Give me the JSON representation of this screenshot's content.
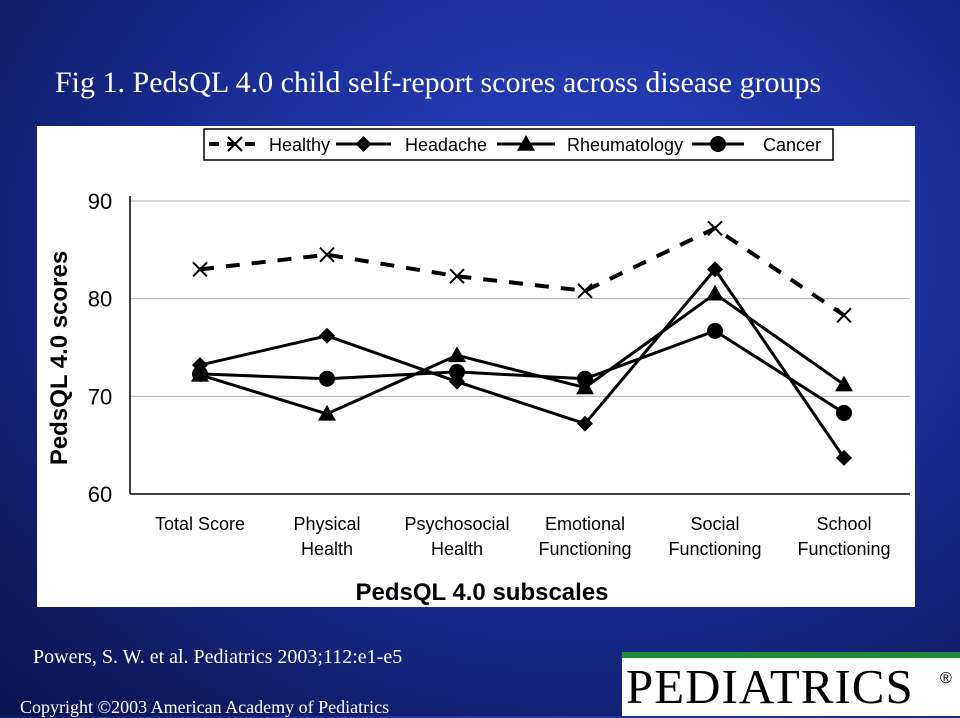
{
  "slide": {
    "title": "Fig 1. PedsQL 4.0 child self-report scores across disease groups",
    "citation": "Powers, S. W. et al. Pediatrics 2003;112:e1-e5",
    "copyright": "Copyright ©2003 American Academy of Pediatrics",
    "logo_text": "PEDIATRICS",
    "logo_mark": "®"
  },
  "chart_data": {
    "type": "line",
    "title": "",
    "xlabel": "PedsQL 4.0 subscales",
    "ylabel": "PedsQL 4.0 scores",
    "ylim": [
      60,
      90
    ],
    "yticks": [
      "90",
      "80",
      "70",
      "60"
    ],
    "categories": [
      [
        "Total Score"
      ],
      [
        "Physical",
        "Health"
      ],
      [
        "Psychosocial",
        "Health"
      ],
      [
        "Emotional",
        "Functioning"
      ],
      [
        "Social",
        "Functioning"
      ],
      [
        "School",
        "Functioning"
      ]
    ],
    "series": [
      {
        "name": "Healthy",
        "marker": "x",
        "dashed": true,
        "values": [
          83.0,
          84.5,
          82.3,
          80.8,
          87.2,
          78.3
        ]
      },
      {
        "name": "Headache",
        "marker": "diamond",
        "dashed": false,
        "values": [
          73.2,
          76.2,
          71.5,
          67.2,
          83.0,
          63.7
        ]
      },
      {
        "name": "Rheumatology",
        "marker": "triangle",
        "dashed": false,
        "values": [
          72.2,
          68.2,
          74.2,
          70.9,
          80.5,
          71.2
        ]
      },
      {
        "name": "Cancer",
        "marker": "circle",
        "dashed": false,
        "values": [
          72.3,
          71.8,
          72.5,
          71.8,
          76.7,
          68.3
        ]
      }
    ],
    "legend_position": "top",
    "grid": true,
    "line_color": "#000000"
  }
}
